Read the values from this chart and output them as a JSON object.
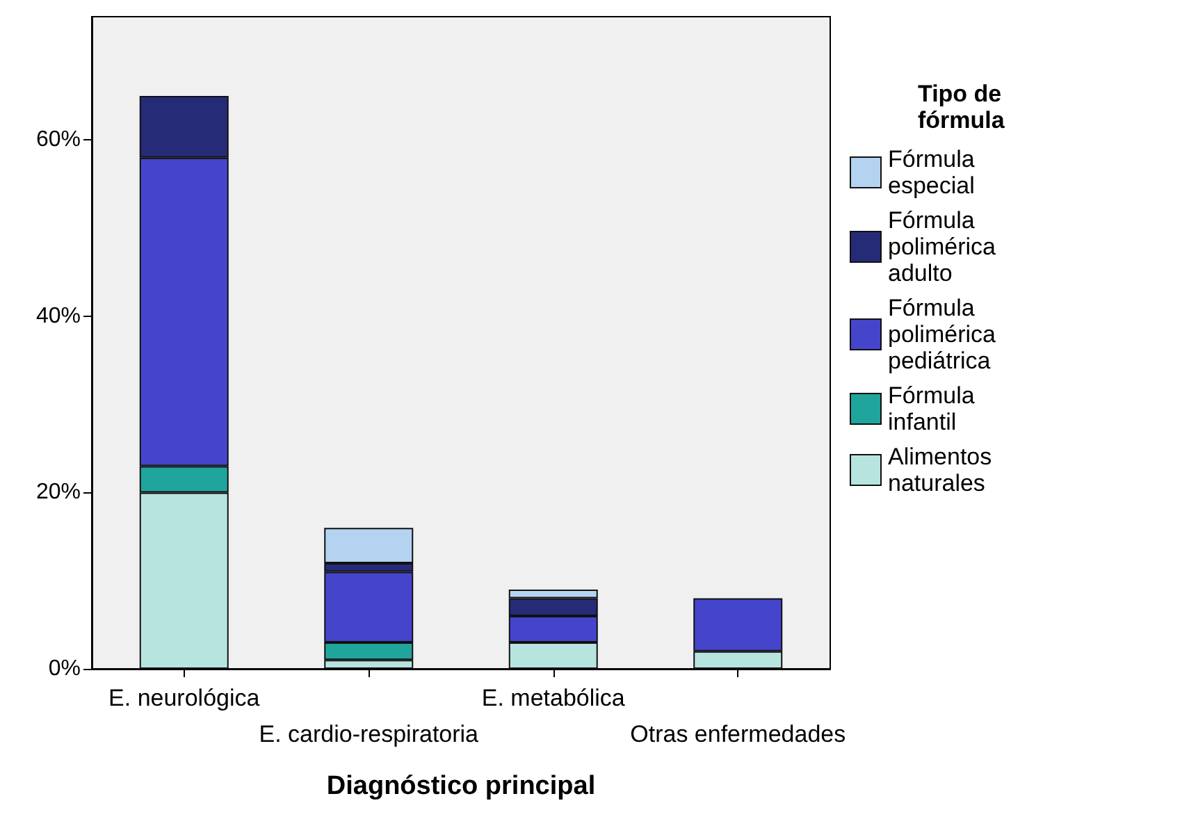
{
  "chart_data": {
    "type": "bar",
    "stacked": true,
    "xlabel": "Diagnóstico principal",
    "legend_title": "Tipo de fórmula",
    "legend": "right",
    "grid": false,
    "categories": [
      "E. neurológica",
      "E. cardio-respiratoria",
      "E. metabólica",
      "Otras enfermedades"
    ],
    "series": [
      {
        "name": "Alimentos naturales",
        "color": "#b8e4e0",
        "values": [
          20,
          1,
          3,
          2
        ]
      },
      {
        "name": "Fórmula infantil",
        "color": "#1fa59c",
        "values": [
          3,
          2,
          0,
          0
        ]
      },
      {
        "name": "Fórmula polimérica pediátrica",
        "color": "#4545cc",
        "values": [
          35,
          8,
          3,
          6
        ]
      },
      {
        "name": "Fórmula polimérica adulto",
        "color": "#262b78",
        "values": [
          7,
          1,
          2,
          0
        ]
      },
      {
        "name": "Fórmula especial",
        "color": "#b3d3f0",
        "values": [
          0,
          4,
          1,
          0
        ]
      }
    ],
    "ylim": [
      0,
      74
    ],
    "yticks": [
      {
        "value": 0,
        "label": "0%"
      },
      {
        "value": 20,
        "label": "20%"
      },
      {
        "value": 40,
        "label": "40%"
      },
      {
        "value": 60,
        "label": "60%"
      }
    ]
  }
}
